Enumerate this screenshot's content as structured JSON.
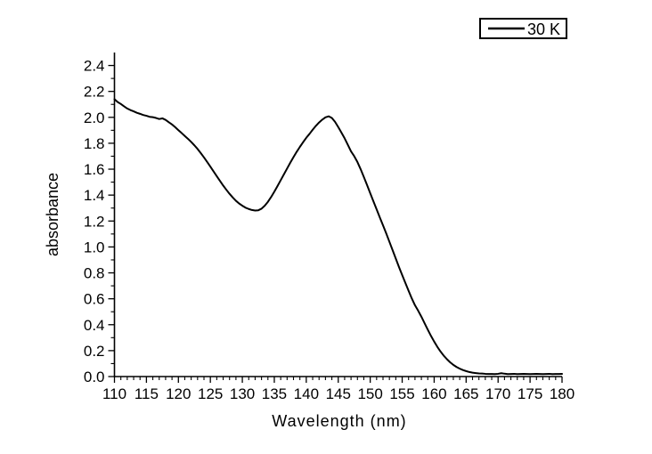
{
  "figure": {
    "background_color": "#ffffff",
    "axis_color": "#000000"
  },
  "legend": {
    "label": "30 K",
    "position": "top-right",
    "border_color": "#000000",
    "line_sample_color": "#000000"
  },
  "chart_data": {
    "type": "line",
    "title": "",
    "xlabel": "Wavelength (nm)",
    "ylabel": "absorbance",
    "xlim": [
      110,
      180
    ],
    "ylim": [
      0,
      2.5
    ],
    "grid": false,
    "legend_position": "top-right",
    "x_tick_values": [
      110,
      115,
      120,
      125,
      130,
      135,
      140,
      145,
      150,
      155,
      160,
      165,
      170,
      175,
      180
    ],
    "x_tick_labels": [
      "110",
      "115",
      "120",
      "125",
      "130",
      "135",
      "140",
      "145",
      "150",
      "155",
      "160",
      "165",
      "170",
      "175",
      "180"
    ],
    "x_minor_tick_step": 1,
    "y_tick_values": [
      0.0,
      0.2,
      0.4,
      0.6,
      0.8,
      1.0,
      1.2,
      1.4,
      1.6,
      1.8,
      2.0,
      2.2,
      2.4
    ],
    "y_tick_labels": [
      "0.0",
      "0.2",
      "0.4",
      "0.6",
      "0.8",
      "1.0",
      "1.2",
      "1.4",
      "1.6",
      "1.8",
      "2.0",
      "2.2",
      "2.4"
    ],
    "y_minor_tick_step": 0.1,
    "features": {
      "start_value_at_110nm": 2.14,
      "local_minimum": {
        "wavelength": 132,
        "absorbance": 1.28
      },
      "peak": {
        "wavelength": 143.3,
        "absorbance": 2.01
      },
      "flat_tail_level": 0.02
    },
    "series": [
      {
        "name": "30 K",
        "color": "#000000",
        "x": [
          110,
          110.5,
          111,
          111.5,
          112,
          112.5,
          113,
          113.5,
          114,
          114.5,
          115,
          115.5,
          116,
          116.5,
          117,
          117.5,
          118,
          118.5,
          119,
          119.5,
          120,
          120.5,
          121,
          121.5,
          122,
          122.5,
          123,
          123.5,
          124,
          124.5,
          125,
          125.5,
          126,
          126.5,
          127,
          127.5,
          128,
          128.5,
          129,
          129.5,
          130,
          130.5,
          131,
          131.5,
          132,
          132.5,
          133,
          133.5,
          134,
          134.5,
          135,
          135.5,
          136,
          136.5,
          137,
          137.5,
          138,
          138.5,
          139,
          139.5,
          140,
          140.5,
          141,
          141.5,
          142,
          142.5,
          143,
          143.5,
          144,
          144.5,
          145,
          145.5,
          146,
          146.5,
          147,
          147.5,
          148,
          148.5,
          149,
          149.5,
          150,
          150.5,
          151,
          151.5,
          152,
          152.5,
          153,
          153.5,
          154,
          154.5,
          155,
          155.5,
          156,
          156.5,
          157,
          157.5,
          158,
          158.5,
          159,
          159.5,
          160,
          160.5,
          161,
          161.5,
          162,
          162.5,
          163,
          163.5,
          164,
          164.5,
          165,
          165.5,
          166,
          166.5,
          167,
          167.5,
          168,
          168.5,
          169,
          169.5,
          170,
          170.5,
          171,
          171.5,
          172,
          172.5,
          173,
          173.5,
          174,
          174.5,
          175,
          175.5,
          176,
          176.5,
          177,
          177.5,
          178,
          178.5,
          179,
          179.5,
          180
        ],
        "y": [
          2.14,
          2.118,
          2.103,
          2.085,
          2.068,
          2.056,
          2.046,
          2.035,
          2.027,
          2.018,
          2.012,
          2.004,
          2.001,
          1.995,
          1.987,
          1.992,
          1.98,
          1.962,
          1.945,
          1.924,
          1.901,
          1.879,
          1.856,
          1.834,
          1.81,
          1.784,
          1.756,
          1.724,
          1.691,
          1.656,
          1.62,
          1.583,
          1.546,
          1.51,
          1.474,
          1.441,
          1.41,
          1.382,
          1.356,
          1.335,
          1.318,
          1.303,
          1.293,
          1.285,
          1.281,
          1.283,
          1.295,
          1.318,
          1.348,
          1.385,
          1.426,
          1.47,
          1.515,
          1.56,
          1.605,
          1.65,
          1.693,
          1.734,
          1.772,
          1.808,
          1.842,
          1.872,
          1.904,
          1.934,
          1.96,
          1.982,
          2.0,
          2.008,
          1.995,
          1.965,
          1.925,
          1.882,
          1.838,
          1.788,
          1.737,
          1.7,
          1.655,
          1.6,
          1.54,
          1.478,
          1.415,
          1.352,
          1.29,
          1.228,
          1.167,
          1.105,
          1.04,
          0.975,
          0.91,
          0.845,
          0.783,
          0.722,
          0.662,
          0.603,
          0.55,
          0.508,
          0.462,
          0.412,
          0.362,
          0.314,
          0.27,
          0.229,
          0.193,
          0.161,
          0.134,
          0.11,
          0.09,
          0.074,
          0.061,
          0.05,
          0.042,
          0.035,
          0.03,
          0.027,
          0.024,
          0.023,
          0.021,
          0.02,
          0.02,
          0.019,
          0.021,
          0.026,
          0.022,
          0.019,
          0.02,
          0.021,
          0.019,
          0.02,
          0.021,
          0.02,
          0.019,
          0.02,
          0.021,
          0.02,
          0.019,
          0.02,
          0.021,
          0.019,
          0.02,
          0.02,
          0.021
        ]
      }
    ]
  }
}
